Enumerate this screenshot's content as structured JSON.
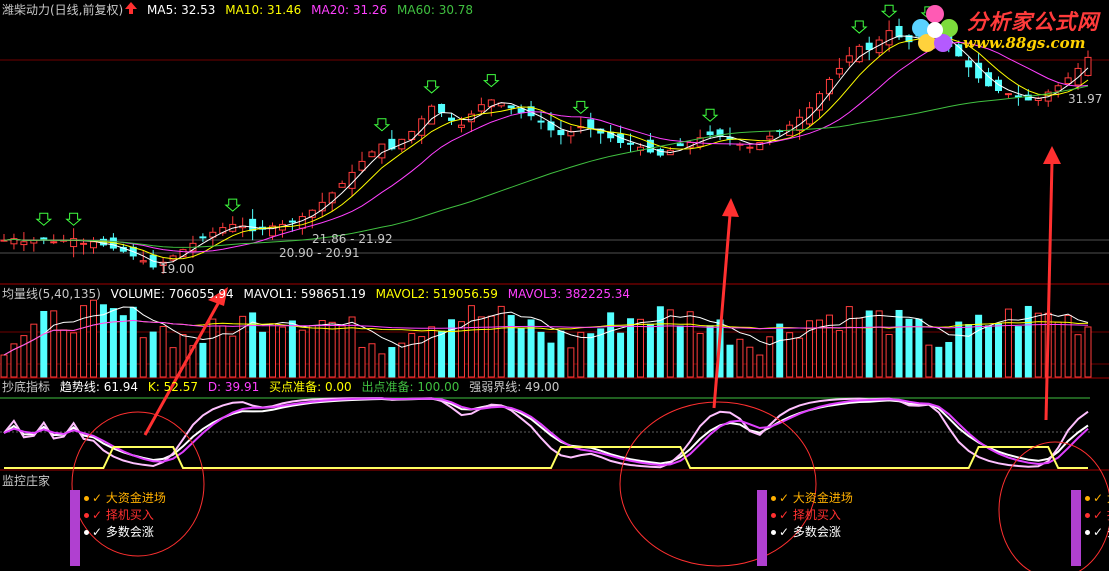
{
  "price_panel": {
    "title": "潍柴动力(日线,前复权)",
    "ma5_label": "MA5: 32.53",
    "ma10_label": "MA10: 31.46",
    "ma20_label": "MA20: 31.26",
    "ma60_label": "MA60: 30.78",
    "ann_low": "19.00",
    "ann_range1": "21.86 - 21.92",
    "ann_range2": "20.90 - 20.91",
    "ann_right": "31.97"
  },
  "volume_panel": {
    "title": "均量线(5,40,135)",
    "volume_label": "VOLUME: 706055.94",
    "mavol1_label": "MAVOL1: 598651.19",
    "mavol2_label": "MAVOL2: 519056.59",
    "mavol3_label": "MAVOL3: 382225.34"
  },
  "indicator_panel": {
    "title": "抄底指标",
    "trend_label": "趋势线: 61.94",
    "k_label": "K: 52.57",
    "d_label": "D: 39.91",
    "buy_prep_label": "买点准备: 0.00",
    "sell_prep_label": "出点准备: 100.00",
    "strength_label": "强弱界线: 49.00"
  },
  "monitor_panel": {
    "title": "监控庄家",
    "signal_groups": [
      {
        "items": [
          "大资金进场",
          "择机买入",
          "多数会涨"
        ]
      },
      {
        "items": [
          "大资金进场",
          "择机买入",
          "多数会涨"
        ]
      },
      {
        "items": [
          "大资金进场",
          "择机买入",
          "多数会涨"
        ]
      }
    ]
  },
  "watermark": {
    "title": "分析家公式网",
    "url": "www.88gs.com"
  },
  "colors": {
    "up": "#ff3c3c",
    "down": "#54ffff",
    "ma5": "#ffffff",
    "ma10": "#ffff00",
    "ma20": "#ff40ff",
    "ma60": "#40c040",
    "grid": "#a00000",
    "arrow": "#ff3030"
  },
  "chart_data": [
    {
      "type": "candlestick",
      "title": "潍柴动力(日线,前复权)",
      "price_range": [
        18.5,
        35.0
      ],
      "ma_series": [
        "MA5",
        "MA10",
        "MA20",
        "MA60"
      ],
      "close_series": [
        20.9,
        21.0,
        20.8,
        20.9,
        21.0,
        20.8,
        20.9,
        21.0,
        20.7,
        20.8,
        20.6,
        20.4,
        20.2,
        19.9,
        19.6,
        19.2,
        19.5,
        19.9,
        20.3,
        20.7,
        21.1,
        21.4,
        21.7,
        21.9,
        21.8,
        21.5,
        21.6,
        21.8,
        21.9,
        22.1,
        22.4,
        22.8,
        23.3,
        23.9,
        24.5,
        25.2,
        25.9,
        26.5,
        27.0,
        26.7,
        27.3,
        27.8,
        28.6,
        29.4,
        29.0,
        28.5,
        28.2,
        28.9,
        29.5,
        29.8,
        29.6,
        29.3,
        29.0,
        28.8,
        28.4,
        27.9,
        27.6,
        27.8,
        28.1,
        28.0,
        27.7,
        27.4,
        27.1,
        27.0,
        26.8,
        26.5,
        26.3,
        26.6,
        26.9,
        27.1,
        27.4,
        27.6,
        27.5,
        27.3,
        27.0,
        26.8,
        27.1,
        27.5,
        27.8,
        28.2,
        28.7,
        29.3,
        30.2,
        31.1,
        31.8,
        32.6,
        33.2,
        33.0,
        33.6,
        34.2,
        33.8,
        33.5,
        33.9,
        34.1,
        33.7,
        33.2,
        32.6,
        31.9,
        31.2,
        30.7,
        30.4,
        30.2,
        30.0,
        29.8,
        29.9,
        30.3,
        30.7,
        31.2,
        31.8,
        32.5
      ]
    },
    {
      "type": "bar",
      "title": "均量线(5,40,135)",
      "series": [
        "VOLUME",
        "MAVOL1",
        "MAVOL2",
        "MAVOL3"
      ]
    },
    {
      "type": "line",
      "title": "抄底指标",
      "series": [
        "趋势线",
        "K",
        "D",
        "买点准备",
        "出点准备",
        "强弱界线"
      ],
      "ylim": [
        0,
        100
      ]
    }
  ]
}
